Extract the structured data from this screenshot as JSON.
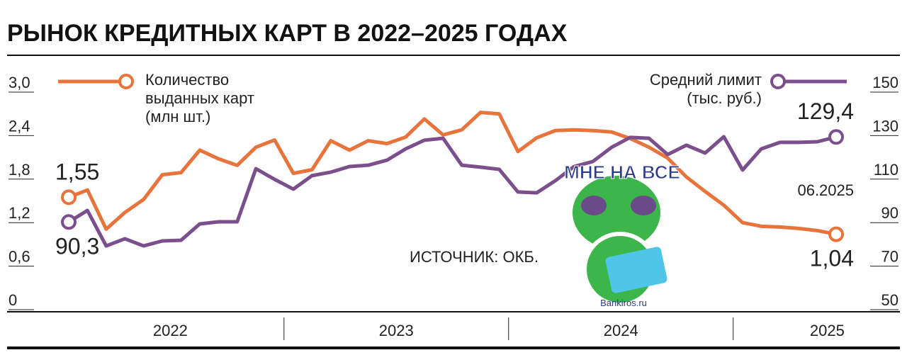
{
  "chart_data": {
    "type": "line",
    "title": "РЫНОК КРЕДИТНЫХ КАРТ В 2022–2025 ГОДАХ",
    "x_labels": [
      "2022",
      "2023",
      "2024",
      "2025"
    ],
    "source": "ИСТОЧНИК: ОКБ.",
    "annotation": "06.2025",
    "sticker": {
      "caption": "МНЕ НА ВСЕ",
      "site": "Bankiros.ru"
    },
    "ylim": [
      0,
      3.0
    ],
    "yticks": [
      0,
      {
        "value": 0.6,
        "label": "0,6"
      },
      {
        "value": 1.2,
        "label": "1,2"
      },
      {
        "value": 1.8,
        "label": "1,8"
      },
      {
        "value": 2.4,
        "label": "2,4"
      },
      {
        "value": 3.0,
        "label": "3,0"
      }
    ],
    "y2lim": [
      50,
      150
    ],
    "y2ticks": [
      50,
      70,
      90,
      110,
      130,
      150
    ],
    "grid": false,
    "series": [
      {
        "name": "Количество выданных карт (млн шт.)",
        "color": "#e8743b",
        "values": [
          1.55,
          1.65,
          1.11,
          1.34,
          1.52,
          1.86,
          1.89,
          2.2,
          2.08,
          1.99,
          2.24,
          2.34,
          1.88,
          1.93,
          2.33,
          2.2,
          2.33,
          2.29,
          2.38,
          2.63,
          2.41,
          2.48,
          2.72,
          2.7,
          2.18,
          2.37,
          2.47,
          2.48,
          2.47,
          2.45,
          2.36,
          2.24,
          2.09,
          1.83,
          1.63,
          1.44,
          1.2,
          1.15,
          1.14,
          1.12,
          1.09,
          1.04
        ],
        "value_labels": [
          "1,55",
          null,
          null,
          null,
          null,
          null,
          null,
          null,
          null,
          null,
          null,
          null,
          null,
          null,
          null,
          null,
          null,
          null,
          null,
          null,
          null,
          null,
          null,
          null,
          null,
          null,
          null,
          null,
          null,
          null,
          null,
          null,
          null,
          null,
          null,
          null,
          null,
          null,
          null,
          null,
          null,
          "1,04"
        ]
      },
      {
        "name": "Средний лимит (тыс. руб.)",
        "color": "#7b4f8c",
        "axis": "y2",
        "values": [
          90.3,
          95.6,
          79.3,
          82.6,
          79.3,
          81.6,
          81.9,
          89.4,
          90.4,
          90.4,
          114.8,
          109.9,
          105.4,
          111.6,
          113.2,
          115.8,
          116.4,
          118.7,
          123.9,
          127.9,
          128.8,
          116.4,
          115.5,
          114.5,
          104.1,
          103.7,
          109.3,
          115.8,
          118.1,
          124.6,
          129.2,
          128.8,
          121.3,
          125.6,
          122.0,
          129.5,
          114.2,
          123.9,
          126.9,
          126.9,
          127.2,
          129.4
        ],
        "value_labels": [
          "90,3",
          null,
          null,
          null,
          null,
          null,
          null,
          null,
          null,
          null,
          null,
          null,
          null,
          null,
          null,
          null,
          null,
          null,
          null,
          null,
          null,
          null,
          null,
          null,
          null,
          null,
          null,
          null,
          null,
          null,
          null,
          null,
          null,
          null,
          null,
          null,
          null,
          null,
          null,
          null,
          null,
          "129,4"
        ]
      }
    ]
  }
}
